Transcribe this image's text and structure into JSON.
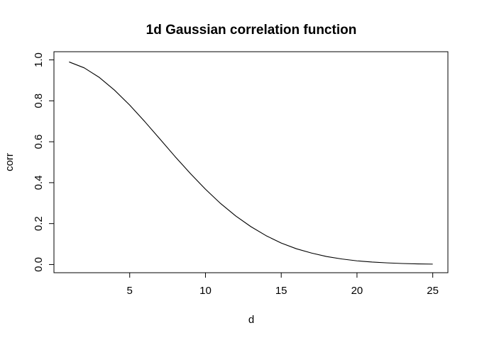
{
  "chart_data": {
    "type": "line",
    "title": "1d Gaussian correlation function",
    "xlabel": "d",
    "ylabel": "corr",
    "xlim": [
      0,
      26
    ],
    "ylim": [
      -0.04,
      1.04
    ],
    "xticks": [
      5,
      10,
      15,
      20,
      25
    ],
    "yticks": [
      0.0,
      0.2,
      0.4,
      0.6,
      0.8,
      1.0
    ],
    "xtick_labels": [
      "5",
      "10",
      "15",
      "20",
      "25"
    ],
    "ytick_labels": [
      "0.0",
      "0.2",
      "0.4",
      "0.6",
      "0.8",
      "1.0"
    ],
    "grid": false,
    "series": [
      {
        "color": "#000000",
        "x": [
          1,
          2,
          3,
          4,
          5,
          6,
          7,
          8,
          9,
          10,
          11,
          12,
          13,
          14,
          15,
          16,
          17,
          18,
          19,
          20,
          21,
          22,
          23,
          24,
          25
        ],
        "y": [
          0.99,
          0.961,
          0.914,
          0.852,
          0.779,
          0.698,
          0.613,
          0.527,
          0.445,
          0.368,
          0.298,
          0.237,
          0.185,
          0.141,
          0.105,
          0.077,
          0.056,
          0.039,
          0.027,
          0.018,
          0.012,
          0.008,
          0.005,
          0.003,
          0.002
        ]
      }
    ]
  }
}
